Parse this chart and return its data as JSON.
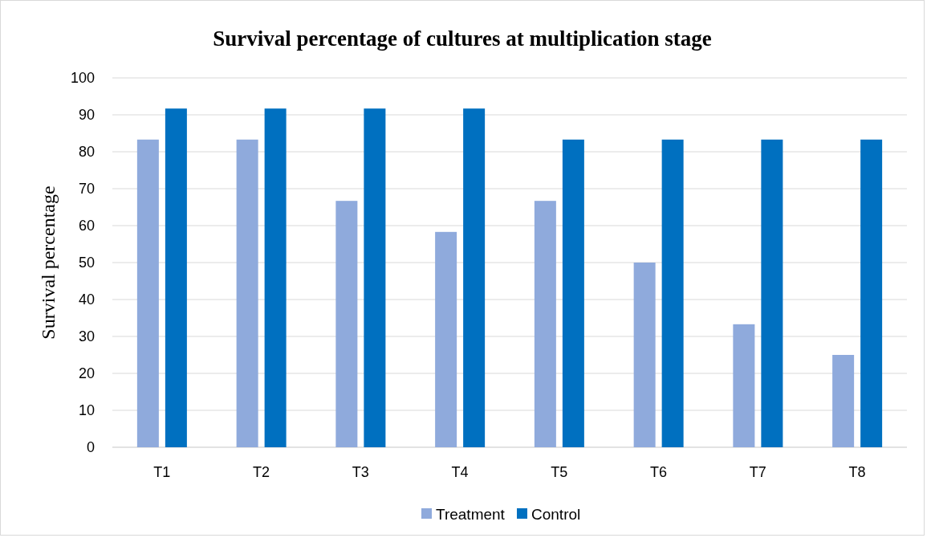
{
  "chart_data": {
    "type": "bar",
    "title": "Survival percentage of cultures at multiplication stage",
    "ylabel": "Survival percentage",
    "categories": [
      "T1",
      "T2",
      "T3",
      "T4",
      "T5",
      "T6",
      "T7",
      "T8"
    ],
    "series": [
      {
        "name": "Treatment",
        "color": "#8faadc",
        "values": [
          83.3,
          83.3,
          66.7,
          58.3,
          66.7,
          50,
          33.3,
          25
        ]
      },
      {
        "name": "Control",
        "color": "#0070c0",
        "values": [
          91.7,
          91.7,
          91.7,
          91.7,
          83.3,
          83.3,
          83.3,
          83.3
        ]
      }
    ],
    "ylim": [
      0,
      100
    ],
    "yticks": [
      0,
      10,
      20,
      30,
      40,
      50,
      60,
      70,
      80,
      90,
      100
    ],
    "grid": "y",
    "legend": "bottom"
  }
}
